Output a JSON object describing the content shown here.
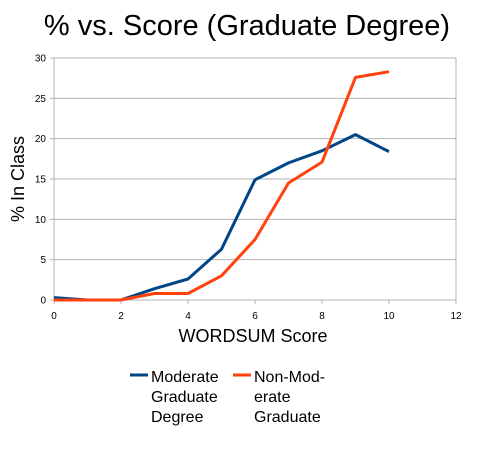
{
  "chart_data": {
    "type": "line",
    "title": "% vs. Score (Graduate Degree)",
    "xlabel": "WORDSUM Score",
    "ylabel": "% In Class",
    "xlim": [
      0,
      12
    ],
    "ylim": [
      0,
      30
    ],
    "x_ticks": [
      0,
      2,
      4,
      6,
      8,
      10,
      12
    ],
    "y_ticks": [
      0,
      5,
      10,
      15,
      20,
      25,
      30
    ],
    "grid": "horizontal",
    "legend_position": "bottom",
    "x": [
      0,
      1,
      2,
      3,
      4,
      5,
      6,
      7,
      8,
      9,
      10
    ],
    "series": [
      {
        "name": "Moderate Graduate Degree",
        "legend_lines": [
          "Moderate",
          "Graduate",
          "Degree"
        ],
        "color": "#004586",
        "values": [
          0.3,
          0.0,
          0.0,
          1.4,
          2.6,
          6.3,
          14.9,
          17.0,
          18.5,
          20.5,
          18.4
        ]
      },
      {
        "name": "Non-Moderate Graduate",
        "legend_lines": [
          "Non-Mod-",
          "erate",
          "Graduate"
        ],
        "color": "#ff420e",
        "values": [
          0.0,
          0.0,
          0.0,
          0.8,
          0.8,
          3.0,
          7.5,
          14.5,
          17.1,
          27.6,
          28.3
        ]
      }
    ]
  }
}
